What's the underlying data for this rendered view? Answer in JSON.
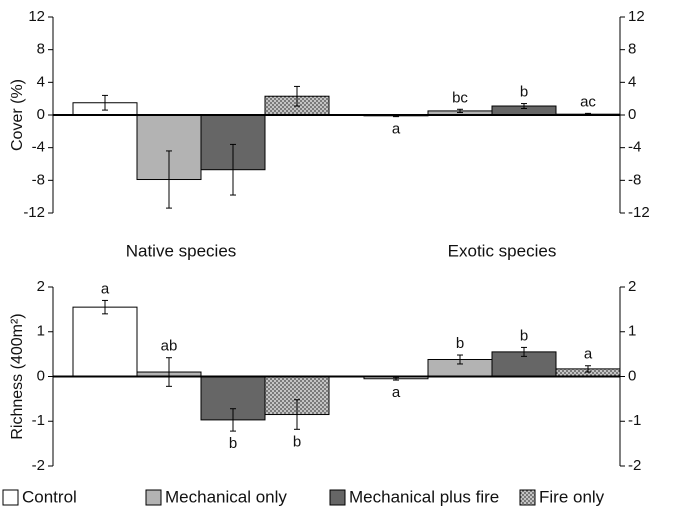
{
  "chart_data": [
    {
      "type": "bar",
      "y_label": "Cover (%)",
      "categories": [
        "Native species",
        "Exotic species"
      ],
      "ylim": [
        -12,
        12
      ],
      "yticks": [
        -12,
        -8,
        -4,
        0,
        4,
        8,
        12
      ],
      "series": [
        {
          "name": "Control",
          "color": "#ffffff",
          "values": [
            1.5,
            -0.1
          ],
          "errors": [
            0.9,
            0.1
          ],
          "letters": [
            null,
            "a"
          ]
        },
        {
          "name": "Mechanical only",
          "color": "#b3b3b3",
          "values": [
            -7.9,
            0.5
          ],
          "errors": [
            3.5,
            0.2
          ],
          "letters": [
            null,
            "bc"
          ]
        },
        {
          "name": "Mechanical plus fire",
          "color": "#666666",
          "values": [
            -6.7,
            1.1
          ],
          "errors": [
            3.1,
            0.3
          ],
          "letters": [
            null,
            "b"
          ]
        },
        {
          "name": "Fire only",
          "color": "#9a9a9a",
          "pattern": "dots",
          "values": [
            2.3,
            0.1
          ],
          "errors": [
            1.2,
            0.1
          ],
          "letters": [
            null,
            "ac"
          ]
        }
      ]
    },
    {
      "type": "bar",
      "y_label": "Richness (400m²)",
      "ylim": [
        -2,
        2
      ],
      "yticks": [
        -2,
        -1,
        0,
        1,
        2
      ],
      "series": [
        {
          "color": "#ffffff",
          "values": [
            1.55,
            -0.05
          ],
          "errors": [
            0.15,
            0.03
          ],
          "letters": [
            "a",
            "a"
          ]
        },
        {
          "color": "#b3b3b3",
          "values": [
            0.1,
            0.38
          ],
          "errors": [
            0.32,
            0.1
          ],
          "letters": [
            "ab",
            "b"
          ]
        },
        {
          "color": "#666666",
          "values": [
            -0.97,
            0.55
          ],
          "errors": [
            0.25,
            0.1
          ],
          "letters": [
            "b",
            "b"
          ]
        },
        {
          "color": "#9a9a9a",
          "pattern": "dots",
          "values": [
            -0.85,
            0.17
          ],
          "errors": [
            0.33,
            0.07
          ],
          "letters": [
            "b",
            "a"
          ]
        }
      ]
    }
  ]
}
